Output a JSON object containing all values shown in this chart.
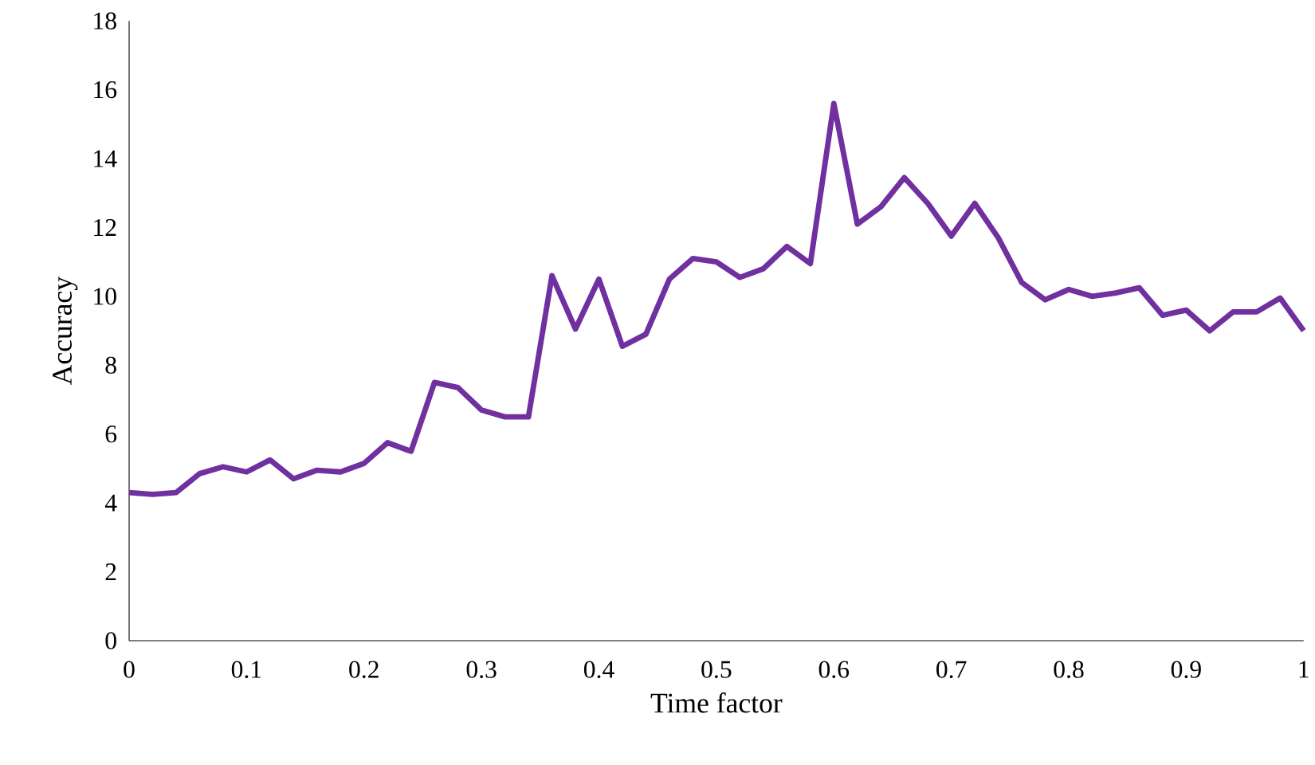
{
  "chart_data": {
    "type": "line",
    "xlabel": "Time factor",
    "ylabel": "Accuracy",
    "x": [
      0,
      0.02,
      0.04,
      0.06,
      0.08,
      0.1,
      0.12,
      0.14,
      0.16,
      0.18,
      0.2,
      0.22,
      0.24,
      0.26,
      0.28,
      0.3,
      0.32,
      0.34,
      0.36,
      0.38,
      0.4,
      0.42,
      0.44,
      0.46,
      0.48,
      0.5,
      0.52,
      0.54,
      0.56,
      0.58,
      0.6,
      0.62,
      0.64,
      0.66,
      0.68,
      0.7,
      0.72,
      0.74,
      0.76,
      0.78,
      0.8,
      0.82,
      0.84,
      0.86,
      0.88,
      0.9,
      0.92,
      0.94,
      0.96,
      0.98,
      1
    ],
    "series": [
      {
        "color": "#7030a0",
        "values": [
          4.3,
          4.25,
          4.3,
          4.85,
          5.05,
          4.9,
          5.25,
          4.7,
          4.95,
          4.9,
          5.15,
          5.75,
          5.5,
          7.5,
          7.35,
          6.7,
          6.5,
          6.5,
          10.6,
          9.05,
          10.5,
          8.55,
          8.9,
          10.5,
          11.1,
          11.0,
          10.55,
          10.8,
          11.45,
          10.95,
          15.6,
          12.1,
          12.6,
          13.45,
          12.7,
          11.75,
          12.7,
          11.7,
          10.4,
          9.9,
          10.2,
          10.0,
          10.1,
          10.25,
          9.45,
          9.6,
          9.0,
          9.55,
          9.55,
          9.95,
          9.0
        ]
      }
    ],
    "xlim": [
      0,
      1
    ],
    "ylim": [
      0,
      18
    ],
    "xticks": [
      0,
      0.1,
      0.2,
      0.3,
      0.4,
      0.5,
      0.6,
      0.7,
      0.8,
      0.9,
      1
    ],
    "yticks": [
      0,
      2,
      4,
      6,
      8,
      10,
      12,
      14,
      16,
      18
    ],
    "marker": "none",
    "line_style": "solid"
  }
}
